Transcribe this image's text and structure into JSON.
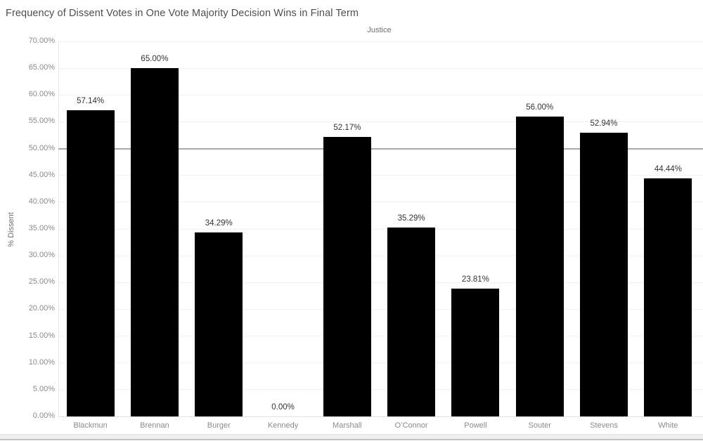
{
  "title": "Frequency of Dissent Votes in One Vote Majority Decision Wins in Final Term",
  "chart_data": {
    "type": "bar",
    "title": "Frequency of Dissent Votes in One Vote Majority Decision Wins in Final Term",
    "x_axis_title": "Justice",
    "y_axis_title": "% Dissent",
    "categories": [
      "Blackmun",
      "Brennan",
      "Burger",
      "Kennedy",
      "Marshall",
      "O’Connor",
      "Powell",
      "Souter",
      "Stevens",
      "White"
    ],
    "values": [
      57.14,
      65.0,
      34.29,
      0.0,
      52.17,
      35.29,
      23.81,
      56.0,
      52.94,
      44.44
    ],
    "bar_labels": [
      "57.14%",
      "65.00%",
      "34.29%",
      "0.00%",
      "52.17%",
      "35.29%",
      "23.81%",
      "56.00%",
      "52.94%",
      "44.44%"
    ],
    "y_ticks": [
      "0.00%",
      "5.00%",
      "10.00%",
      "15.00%",
      "20.00%",
      "25.00%",
      "30.00%",
      "35.00%",
      "40.00%",
      "45.00%",
      "50.00%",
      "55.00%",
      "60.00%",
      "65.00%",
      "70.00%"
    ],
    "y_tick_values": [
      0,
      5,
      10,
      15,
      20,
      25,
      30,
      35,
      40,
      45,
      50,
      55,
      60,
      65,
      70
    ],
    "ylim": [
      0,
      70
    ],
    "grid": true,
    "legend": "none",
    "reference_line_value": 50
  },
  "colors": {
    "bar": "#000000",
    "title_text": "#4e4e4e",
    "axis_text": "#8a8a8a",
    "axis_title_text": "#6f6f6f",
    "bar_label_text": "#333333",
    "gridline": "#f0f0f0",
    "reference_line": "#a8a8a8",
    "background": "#ffffff",
    "scrollbar_track": "#efefef",
    "scrollbar_border": "#c2c2c2"
  }
}
